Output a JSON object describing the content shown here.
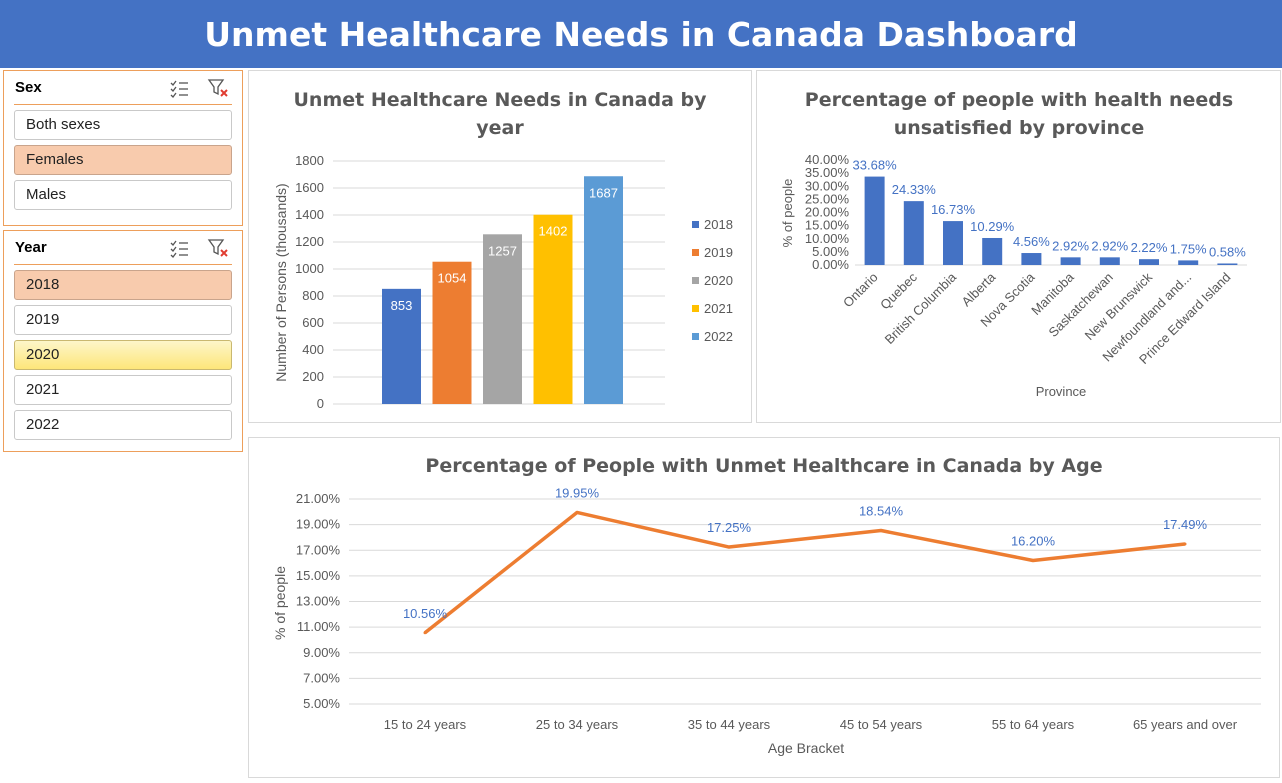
{
  "dashboard": {
    "title": "Unmet Healthcare Needs in Canada Dashboard"
  },
  "colors": {
    "header_bg": "#4472c4",
    "slicer_border": "#ed9f5b",
    "selected_item": "#f8cbad",
    "line_series": "#ed7d31",
    "province_bar": "#4472c4",
    "data_label_blue": "#4472c4"
  },
  "slicers": {
    "sex": {
      "title": "Sex",
      "icons": [
        "multi-select-icon",
        "clear-filter-icon"
      ],
      "items": [
        {
          "label": "Both sexes",
          "state": "normal"
        },
        {
          "label": "Females",
          "state": "selected"
        },
        {
          "label": "Males",
          "state": "normal"
        }
      ]
    },
    "year": {
      "title": "Year",
      "icons": [
        "multi-select-icon",
        "clear-filter-icon"
      ],
      "items": [
        {
          "label": "2018",
          "state": "selected"
        },
        {
          "label": "2019",
          "state": "normal"
        },
        {
          "label": "2020",
          "state": "hover"
        },
        {
          "label": "2021",
          "state": "normal"
        },
        {
          "label": "2022",
          "state": "normal"
        }
      ]
    }
  },
  "chart_data": [
    {
      "id": "by-year",
      "type": "bar",
      "title": "Unmet Healthcare Needs in Canada by year",
      "title_lines": [
        "Unmet Healthcare Needs in Canada by",
        "year"
      ],
      "categories": [
        "2018",
        "2019",
        "2020",
        "2021",
        "2022"
      ],
      "values": [
        853,
        1054,
        1257,
        1402,
        1687
      ],
      "value_labels": [
        "853",
        "1054",
        "1257",
        "1402",
        "1687"
      ],
      "colors": [
        "#4472c4",
        "#ed7d31",
        "#a5a5a5",
        "#ffc000",
        "#5b9bd5"
      ],
      "xlabel": "",
      "ylabel": "Number of Persons (thousands)",
      "ylim": [
        0,
        1800
      ],
      "yticks": [
        0,
        200,
        400,
        600,
        800,
        1000,
        1200,
        1400,
        1600,
        1800
      ],
      "ytick_labels": [
        "0",
        "200",
        "400",
        "600",
        "800",
        "1000",
        "1200",
        "1400",
        "1600",
        "1800"
      ],
      "grid": true,
      "legend": "right"
    },
    {
      "id": "by-province",
      "type": "bar",
      "title": "Percentage of people with health needs unsatisfied by province",
      "title_lines": [
        "Percentage of people with health needs",
        "unsatisfied by province"
      ],
      "categories": [
        "Ontario",
        "Quebec",
        "British Columbia",
        "Alberta",
        "Nova Scotia",
        "Manitoba",
        "Saskatchewan",
        "New Brunswick",
        "Newfoundland and...",
        "Prince Edward Island"
      ],
      "values": [
        33.68,
        24.33,
        16.73,
        10.29,
        4.56,
        2.92,
        2.92,
        2.22,
        1.75,
        0.58
      ],
      "value_labels": [
        "33.68%",
        "24.33%",
        "16.73%",
        "10.29%",
        "4.56%",
        "2.92%",
        "2.92%",
        "2.22%",
        "1.75%",
        "0.58%"
      ],
      "xlabel": "Province",
      "ylabel": "% of people",
      "ylim": [
        0,
        40
      ],
      "yticks": [
        0,
        5,
        10,
        15,
        20,
        25,
        30,
        35,
        40
      ],
      "ytick_labels": [
        "0.00%",
        "5.00%",
        "10.00%",
        "15.00%",
        "20.00%",
        "25.00%",
        "30.00%",
        "35.00%",
        "40.00%"
      ],
      "grid": false,
      "legend": "none"
    },
    {
      "id": "by-age",
      "type": "line",
      "title": "Percentage of People with Unmet Healthcare in Canada by Age",
      "categories": [
        "15 to 24 years",
        "25 to 34 years",
        "35 to 44 years",
        "45 to 54 years",
        "55 to 64 years",
        "65 years and over"
      ],
      "values": [
        10.56,
        19.95,
        17.25,
        18.54,
        16.2,
        17.49
      ],
      "value_labels": [
        "10.56%",
        "19.95%",
        "17.25%",
        "18.54%",
        "16.20%",
        "17.49%"
      ],
      "xlabel": "Age Bracket",
      "ylabel": "% of people",
      "ylim": [
        5,
        21
      ],
      "yticks": [
        5,
        7,
        9,
        11,
        13,
        15,
        17,
        19,
        21
      ],
      "ytick_labels": [
        "5.00%",
        "7.00%",
        "9.00%",
        "11.00%",
        "13.00%",
        "15.00%",
        "17.00%",
        "19.00%",
        "21.00%"
      ],
      "grid": true,
      "legend": "none"
    }
  ]
}
